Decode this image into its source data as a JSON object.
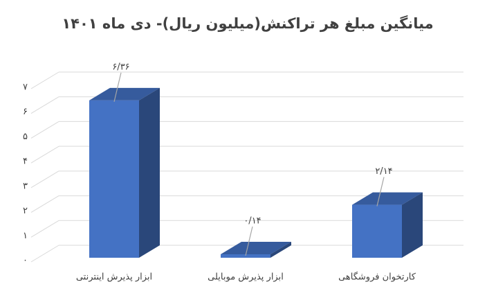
{
  "chart_data": {
    "type": "bar",
    "title": "میانگین مبلغ هر تراکنش(میلیون ریال)- دی ماه ۱۴۰۱",
    "categories": [
      "ابزار پذیرش اینترنتی",
      "ابزار پذیرش موبایلی",
      "کارتخوان فروشگاهی"
    ],
    "values": [
      6.36,
      0.14,
      2.14
    ],
    "value_labels": [
      "۶/۳۶",
      "۰/۱۴",
      "۲/۱۴"
    ],
    "color": "#4472c4",
    "ylim": [
      0,
      7
    ],
    "yticks": [
      {
        "value": 0,
        "label": "۰"
      },
      {
        "value": 1,
        "label": "۱"
      },
      {
        "value": 2,
        "label": "۲"
      },
      {
        "value": 3,
        "label": "۳"
      },
      {
        "value": 4,
        "label": "۴"
      },
      {
        "value": 5,
        "label": "۵"
      },
      {
        "value": 6,
        "label": "۶"
      },
      {
        "value": 7,
        "label": "۷"
      }
    ],
    "grid": true
  }
}
